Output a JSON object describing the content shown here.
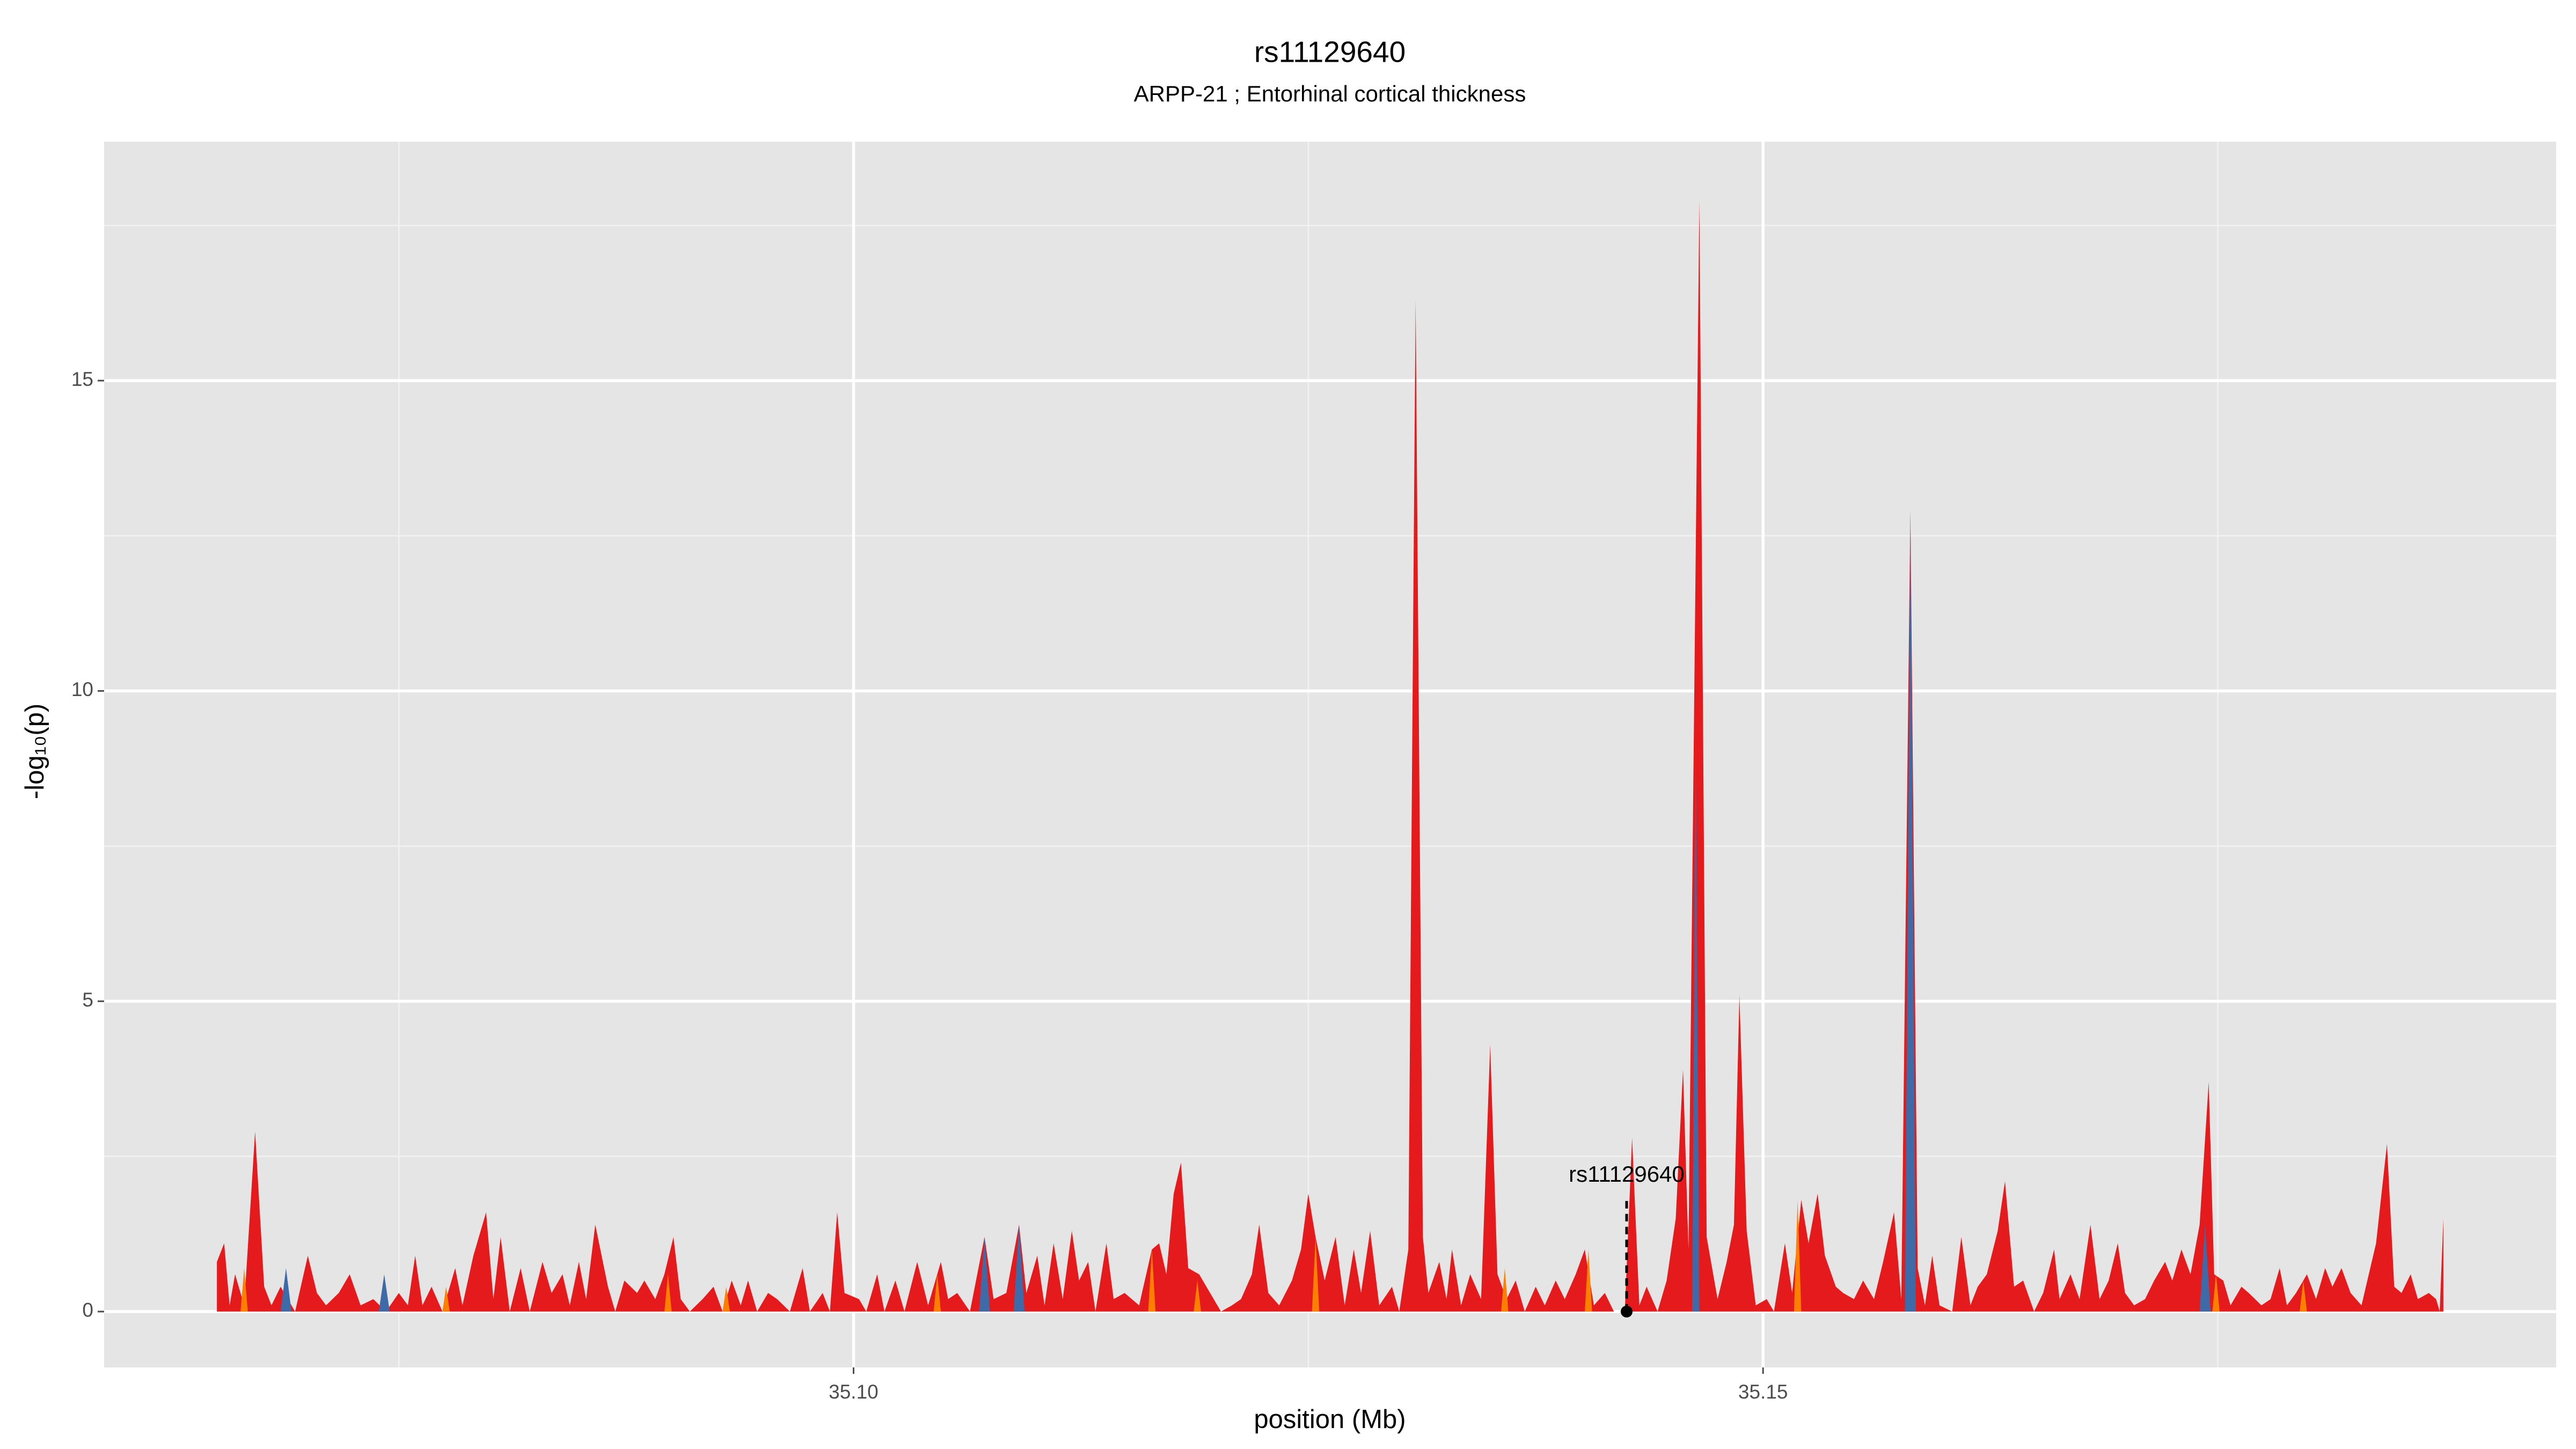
{
  "chart_data": {
    "type": "area",
    "title": "rs11129640",
    "subtitle": "ARPP-21 ; Entorhinal cortical thickness",
    "xlabel": "position (Mb)",
    "ylabel": "-log₁₀(p)",
    "xlim": [
      35.0588,
      35.1936
    ],
    "ylim": [
      -0.9,
      18.85
    ],
    "xticks": [
      {
        "value": 35.1,
        "label": "35.10"
      },
      {
        "value": 35.15,
        "label": "35.15"
      }
    ],
    "x_minor_ticks": [
      35.075,
      35.125,
      35.175
    ],
    "yticks": [
      0,
      5,
      10,
      15
    ],
    "y_minor_ticks": [
      2.5,
      7.5,
      12.5,
      17.5
    ],
    "grid": true,
    "series": [
      {
        "color": "#e41a1c",
        "x": [
          35.065,
          35.0654,
          35.0657,
          35.066,
          35.0665,
          35.0671,
          35.0676,
          35.068,
          35.0685,
          35.0693,
          35.07,
          35.0705,
          35.071,
          35.0717,
          35.0723,
          35.0729,
          35.0736,
          35.0743,
          35.075,
          35.0755,
          35.0759,
          35.0763,
          35.0768,
          35.0774,
          35.0781,
          35.0785,
          35.0791,
          35.0798,
          35.0802,
          35.0806,
          35.0811,
          35.0817,
          35.0822,
          35.0829,
          35.0834,
          35.084,
          35.0844,
          35.0849,
          35.0853,
          35.0858,
          35.0865,
          35.0869,
          35.0874,
          35.0881,
          35.0885,
          35.0891,
          35.0896,
          35.0901,
          35.0905,
          35.091,
          35.0917,
          35.0923,
          35.0928,
          35.0933,
          35.0938,
          35.0942,
          35.0947,
          35.0953,
          35.0958,
          35.0965,
          35.0972,
          35.0976,
          35.0983,
          35.0987,
          35.0991,
          35.0995,
          35.1003,
          35.1007,
          35.1013,
          35.1017,
          35.1023,
          35.1028,
          35.1035,
          35.1041,
          35.1048,
          35.1052,
          35.1057,
          35.1064,
          35.1072,
          35.1077,
          35.1084,
          35.1091,
          35.1095,
          35.1101,
          35.1105,
          35.111,
          35.1115,
          35.112,
          35.1124,
          35.1129,
          35.1133,
          35.1139,
          35.1143,
          35.1149,
          35.1157,
          35.1164,
          35.1168,
          35.1172,
          35.1176,
          35.118,
          35.1184,
          35.119,
          35.1196,
          35.1202,
          35.1208,
          35.1213,
          35.1219,
          35.1223,
          35.1228,
          35.1234,
          35.1241,
          35.1246,
          35.125,
          35.1254,
          35.1259,
          35.1265,
          35.127,
          35.1275,
          35.1279,
          35.1284,
          35.1289,
          35.1296,
          35.13,
          35.1305,
          35.1309,
          35.1313,
          35.1316,
          35.1322,
          35.1326,
          35.1329,
          35.1334,
          35.1339,
          35.1345,
          35.135,
          35.1354,
          35.1359,
          35.1364,
          35.1369,
          35.1375,
          35.138,
          35.1386,
          35.1391,
          35.1397,
          35.1402,
          35.1407,
          35.1413,
          35.1418,
          35.1424,
          35.1428,
          35.1432,
          35.1436,
          35.1442,
          35.1447,
          35.1452,
          35.1456,
          35.1459,
          35.1465,
          35.1469,
          35.1475,
          35.148,
          35.1484,
          35.1487,
          35.1491,
          35.1496,
          35.1502,
          35.1506,
          35.1512,
          35.1516,
          35.1521,
          35.1525,
          35.153,
          35.1534,
          35.154,
          35.1544,
          35.155,
          35.1555,
          35.1561,
          35.1566,
          35.1572,
          35.1576,
          35.1581,
          35.1585,
          35.1589,
          35.1593,
          35.1597,
          35.1604,
          35.1609,
          35.1614,
          35.1618,
          35.1623,
          35.1629,
          35.1633,
          35.1638,
          35.1643,
          35.1649,
          35.1654,
          35.166,
          35.1663,
          35.1669,
          35.1674,
          35.168,
          35.1685,
          35.169,
          35.1695,
          35.1699,
          35.1704,
          35.171,
          35.1715,
          35.1721,
          35.1725,
          35.173,
          35.1735,
          35.174,
          35.1745,
          35.1748,
          35.1753,
          35.1757,
          35.1763,
          35.1767,
          35.1774,
          35.1779,
          35.1784,
          35.1788,
          35.1793,
          35.1799,
          35.1804,
          35.1809,
          35.1813,
          35.1818,
          35.1823,
          35.1829,
          35.1837,
          35.1843,
          35.1847,
          35.1851,
          35.1856,
          35.186,
          35.1866,
          35.187,
          35.1872,
          35.1874
        ],
        "values": [
          0.8,
          1.1,
          0.1,
          0.6,
          0.1,
          2.9,
          0.4,
          0.1,
          0.4,
          0,
          0.9,
          0.3,
          0.1,
          0.3,
          0.6,
          0.1,
          0.2,
          0,
          0.3,
          0.1,
          0.9,
          0.1,
          0.4,
          0,
          0.7,
          0.1,
          0.9,
          1.6,
          0.2,
          1.2,
          0,
          0.7,
          0,
          0.8,
          0.3,
          0.6,
          0.1,
          0.8,
          0.2,
          1.4,
          0.4,
          0,
          0.5,
          0.3,
          0.5,
          0.2,
          0.6,
          1.2,
          0.2,
          0,
          0.2,
          0.4,
          0,
          0.5,
          0.1,
          0.5,
          0,
          0.3,
          0.2,
          0,
          0.7,
          0,
          0.3,
          0,
          1.6,
          0.3,
          0.2,
          0,
          0.6,
          0,
          0.5,
          0,
          0.8,
          0.1,
          0.8,
          0.2,
          0.3,
          0,
          1.2,
          0.2,
          0.3,
          1.4,
          0.3,
          0.9,
          0.1,
          1.1,
          0.2,
          1.3,
          0.5,
          0.8,
          0,
          1.1,
          0.2,
          0.3,
          0.1,
          1,
          1.1,
          0.6,
          1.9,
          2.4,
          0.7,
          0.6,
          0.3,
          0,
          0.1,
          0.2,
          0.6,
          1.4,
          0.3,
          0.1,
          0.5,
          1,
          1.9,
          1.2,
          0.5,
          1.2,
          0.1,
          1,
          0.3,
          1.3,
          0.1,
          0.4,
          0,
          1,
          16.3,
          1.2,
          0.3,
          0.8,
          0.2,
          1,
          0.1,
          0.6,
          0.2,
          4.3,
          0.6,
          0.2,
          0.5,
          0,
          0.4,
          0.1,
          0.5,
          0.2,
          0.6,
          1,
          0.1,
          0.3,
          0,
          0,
          2.8,
          0.1,
          0.4,
          0,
          0.5,
          1.5,
          3.9,
          1,
          17.9,
          1.2,
          0.2,
          0.8,
          1.4,
          5.1,
          1.3,
          0.1,
          0.2,
          0,
          1.1,
          0.3,
          1.8,
          1.1,
          1.9,
          0.9,
          0.4,
          0.3,
          0.2,
          0.5,
          0.2,
          0.8,
          1.6,
          0.2,
          12.9,
          0.7,
          0.1,
          0.9,
          0.1,
          0,
          1.2,
          0.1,
          0.4,
          0.6,
          1.3,
          2.1,
          0.4,
          0.5,
          0,
          0.3,
          1,
          0.2,
          0.6,
          0.2,
          1.4,
          0.2,
          0.5,
          1.1,
          0.3,
          0.1,
          0.2,
          0.5,
          0.8,
          0.5,
          1,
          0.6,
          1.4,
          3.7,
          0.6,
          0.5,
          0.1,
          0.4,
          0.3,
          0.1,
          0.2,
          0.7,
          0.1,
          0.3,
          0.6,
          0.2,
          0.7,
          0.4,
          0.7,
          0.3,
          0.1,
          1.1,
          2.7,
          0.4,
          0.3,
          0.6,
          0.2,
          0.3,
          0.2,
          0,
          1.5
        ]
      },
      {
        "color": "#ff7f00",
        "x": [
          35.0663,
          35.0665,
          35.0667,
          35.0774,
          35.0776,
          35.0778,
          35.0896,
          35.0898,
          35.09,
          35.0928,
          35.093,
          35.0932,
          35.1044,
          35.1046,
          35.1048,
          35.1162,
          35.1164,
          35.1166,
          35.1187,
          35.1189,
          35.1191,
          35.1252,
          35.1254,
          35.1256,
          35.1356,
          35.1358,
          35.136,
          35.1402,
          35.1404,
          35.1406,
          35.1517,
          35.1519,
          35.1521,
          35.1747,
          35.1749,
          35.1751,
          35.1795,
          35.1797,
          35.1799
        ],
        "values": [
          0,
          0.7,
          0,
          0,
          0.4,
          0,
          0,
          0.6,
          0,
          0,
          0.4,
          0,
          0,
          0.6,
          0,
          0,
          1,
          0,
          0,
          0.5,
          0,
          0,
          1.2,
          0,
          0,
          0.7,
          0,
          0,
          1,
          0,
          0,
          1.8,
          0,
          0,
          0.6,
          0,
          0,
          0.5,
          0
        ]
      },
      {
        "color": "#3e6aa8",
        "x": [
          35.0685,
          35.0688,
          35.0691,
          35.0739,
          35.0742,
          35.0745,
          35.1069,
          35.1072,
          35.1075,
          35.1088,
          35.1091,
          35.1094,
          35.1461,
          35.1463,
          35.1465,
          35.1578,
          35.1581,
          35.1584,
          35.174,
          35.1743,
          35.1746
        ],
        "values": [
          0,
          0.7,
          0,
          0,
          0.6,
          0,
          0,
          1.2,
          0,
          0,
          1.4,
          0,
          0,
          9,
          0,
          0,
          12.9,
          0,
          0,
          1.4,
          0
        ]
      }
    ],
    "annotation": {
      "text": "rs11129640",
      "x": 35.1425,
      "y": 0,
      "line_to": 1.8
    }
  }
}
